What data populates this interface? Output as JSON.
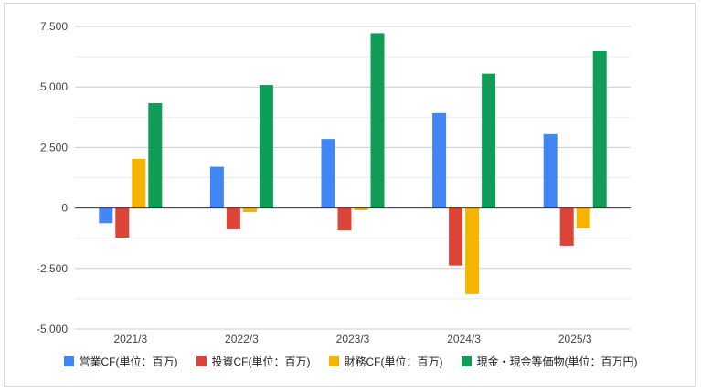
{
  "chart_data": {
    "type": "bar",
    "categories": [
      "2021/3",
      "2022/3",
      "2023/3",
      "2024/3",
      "2025/3"
    ],
    "series": [
      {
        "name": "営業CF(単位：百万)",
        "color": "#4285f4",
        "values": [
          -630,
          1700,
          2850,
          3920,
          3050
        ]
      },
      {
        "name": "投資CF(単位：百万)",
        "color": "#db4437",
        "values": [
          -1230,
          -880,
          -930,
          -2380,
          -1560
        ]
      },
      {
        "name": "財務CF(単位：百万)",
        "color": "#f4b400",
        "values": [
          2030,
          -170,
          -90,
          -3560,
          -850
        ]
      },
      {
        "name": "現金・現金等価物(単位：百万円)",
        "color": "#0f9d58",
        "values": [
          4330,
          5080,
          7220,
          5550,
          6480
        ]
      }
    ],
    "yticks": [
      "7,500",
      "5,000",
      "2,500",
      "0",
      "-2,500",
      "-5,000"
    ],
    "ylim": [
      -5000,
      7500
    ],
    "grid": true,
    "legend": "bottom"
  }
}
